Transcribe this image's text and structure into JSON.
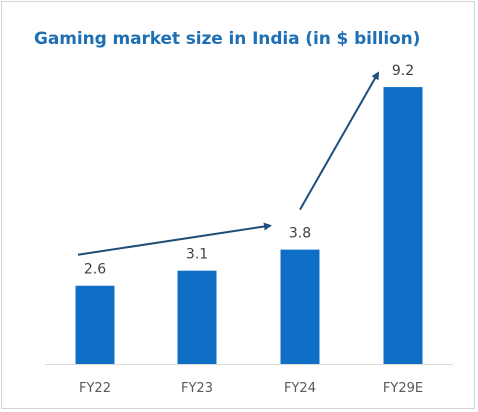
{
  "chart_data": {
    "type": "bar",
    "title": "Gaming market size in India (in $ billion)",
    "xlabel": "",
    "ylabel": "",
    "categories": [
      "FY22",
      "FY23",
      "FY24",
      "FY29E"
    ],
    "values": [
      2.6,
      3.1,
      3.8,
      9.2
    ],
    "data_labels": [
      "2.6",
      "3.1",
      "3.8",
      "9.2"
    ],
    "ylim": [
      0,
      10
    ],
    "grid": false,
    "legend": "none",
    "annotations": [
      {
        "type": "arrow",
        "from_category": "FY22",
        "to_category": "FY24"
      },
      {
        "type": "arrow",
        "from_category": "FY24",
        "to_category": "FY29E"
      }
    ]
  },
  "colors": {
    "bar": "#0f6fc6",
    "title": "#1f6fb5",
    "arrow": "#1f4e79",
    "axis": "#d9d9d9"
  }
}
